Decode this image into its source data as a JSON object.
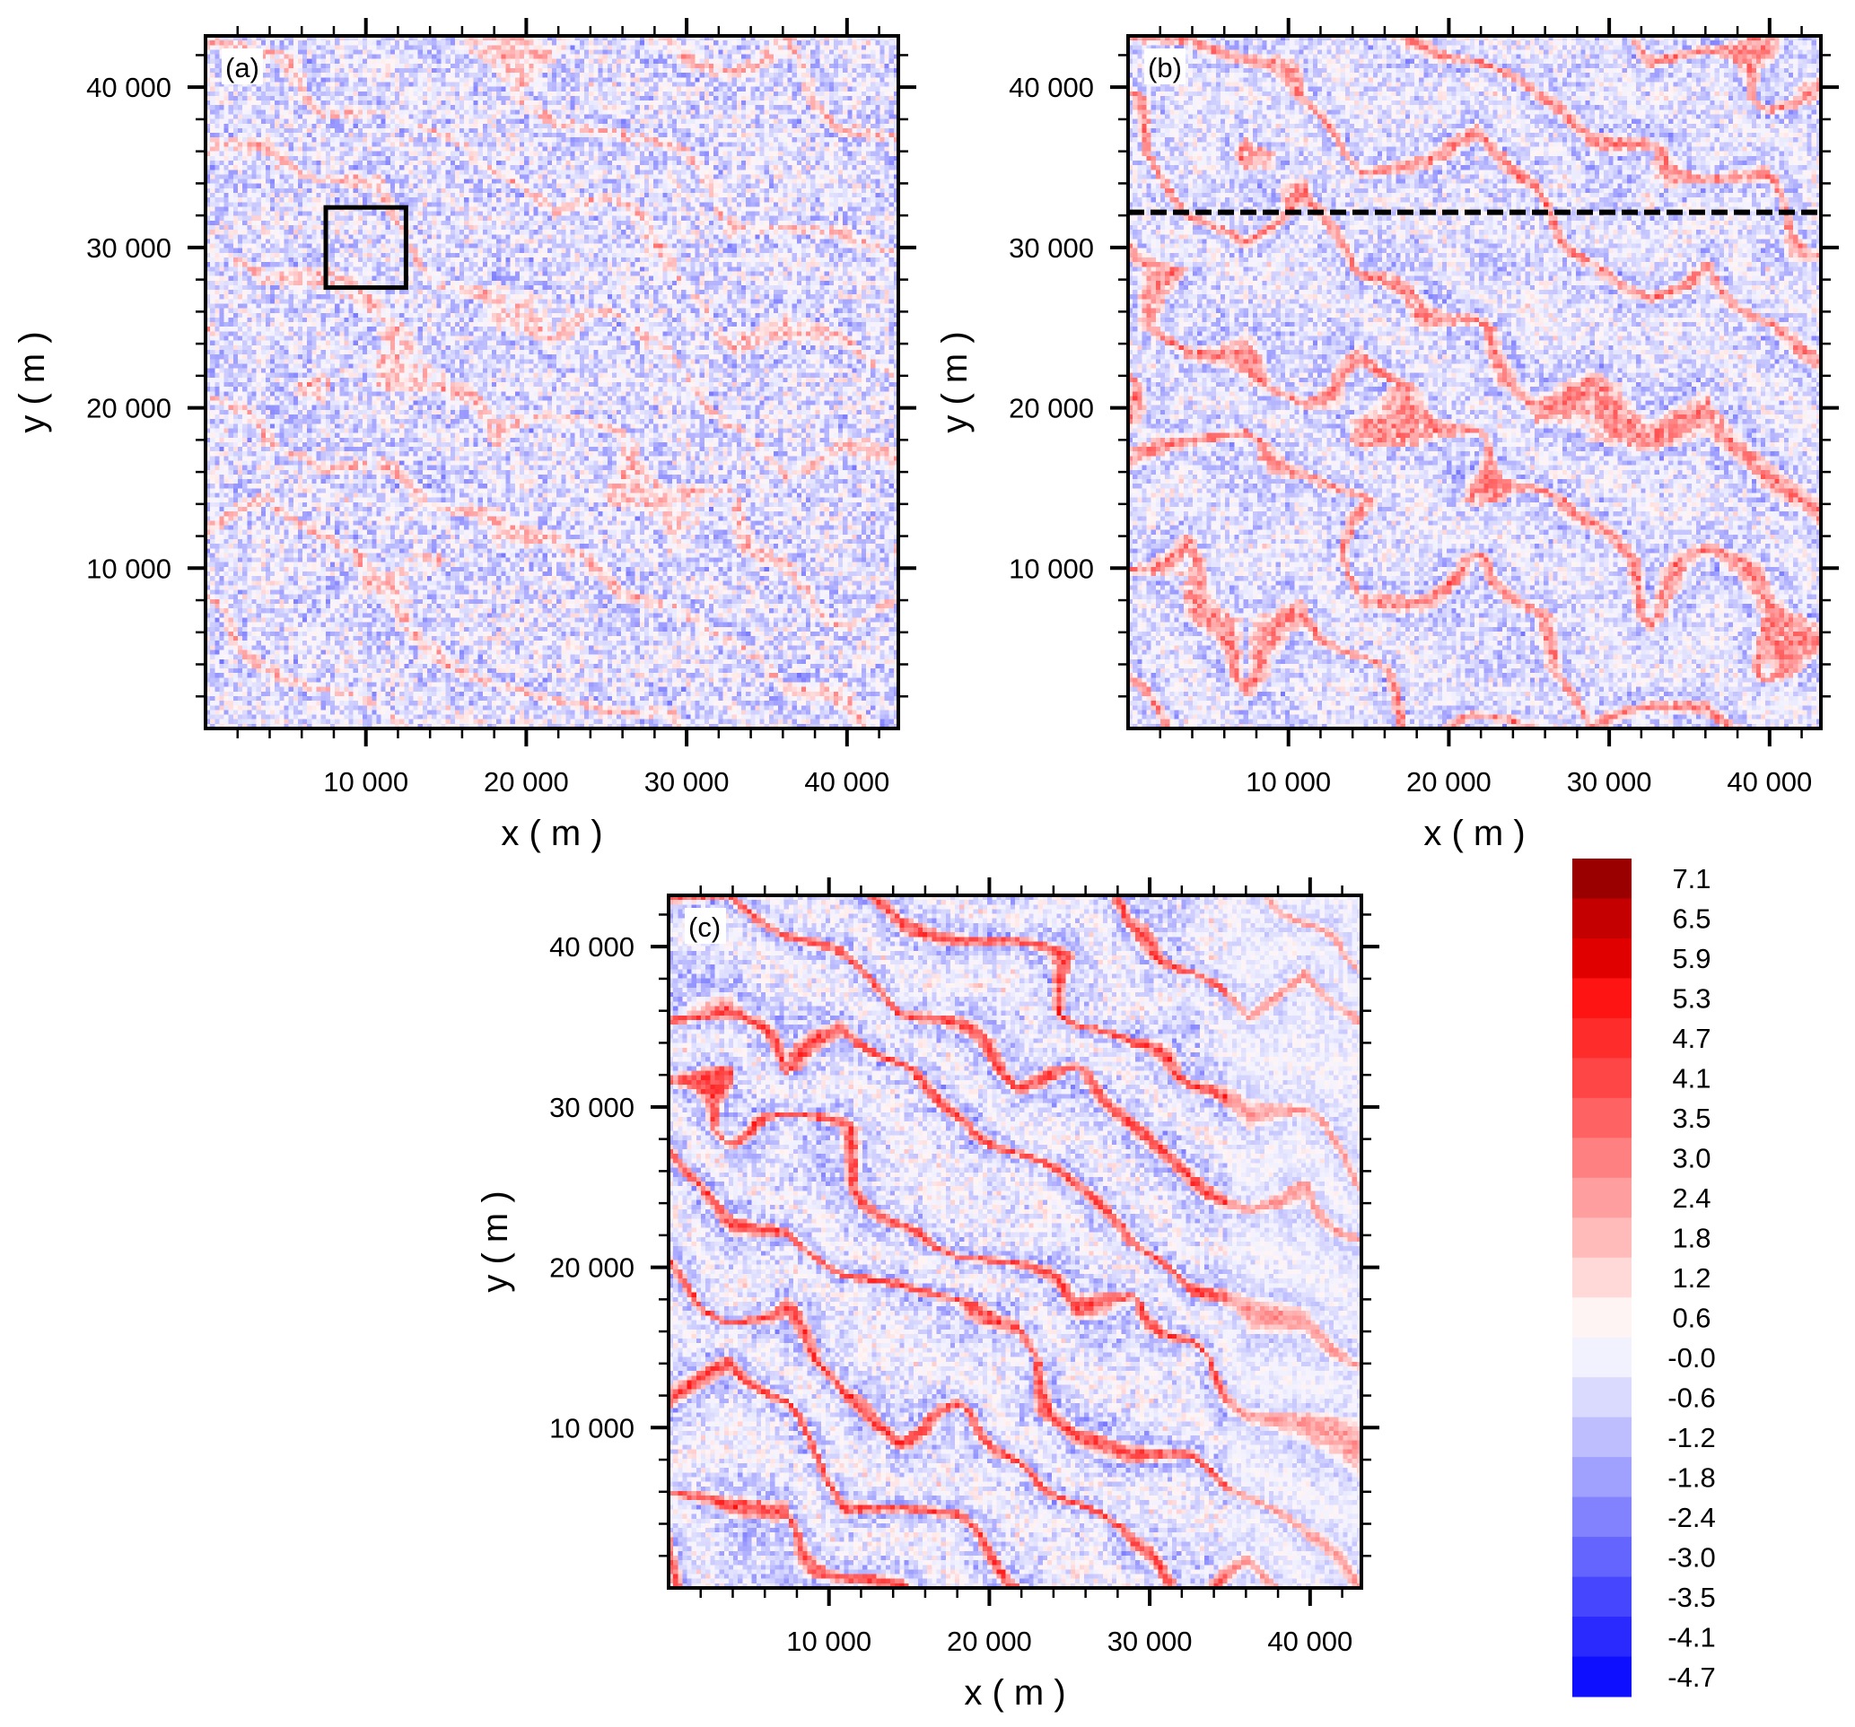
{
  "chart_data": {
    "type": "heatmap",
    "x_range": [
      0,
      43200
    ],
    "y_range": [
      0,
      43200
    ],
    "panels": [
      {
        "id": "a",
        "label": "(a)",
        "xlabel": "x ( m )",
        "ylabel": "y ( m )",
        "annotation": {
          "type": "box",
          "x": [
            7500,
            12500
          ],
          "y": [
            27500,
            32500
          ]
        }
      },
      {
        "id": "b",
        "label": "(b)",
        "xlabel": "x ( m )",
        "ylabel": "y ( m )",
        "annotation": {
          "type": "dashed-hline",
          "y": 32200
        }
      },
      {
        "id": "c",
        "label": "(c)",
        "xlabel": "x ( m )",
        "ylabel": "y ( m )",
        "annotation": null
      }
    ],
    "x_ticks": [
      10000,
      20000,
      30000,
      40000
    ],
    "x_tick_labels": [
      "10 000",
      "20 000",
      "30 000",
      "40 000"
    ],
    "y_ticks": [
      10000,
      20000,
      30000,
      40000
    ],
    "y_tick_labels": [
      "10 000",
      "20 000",
      "30 000",
      "40 000"
    ],
    "minor_tick_step": 2000,
    "colorbar": {
      "labels": [
        "7.1",
        "6.5",
        "5.9",
        "5.3",
        "4.7",
        "4.1",
        "3.5",
        "3.0",
        "2.4",
        "1.8",
        "1.2",
        "0.6",
        "-0.0",
        "-0.6",
        "-1.2",
        "-1.8",
        "-2.4",
        "-3.0",
        "-3.5",
        "-4.1",
        "-4.7"
      ],
      "colors": [
        "#9a0000",
        "#c40000",
        "#e00000",
        "#ff1414",
        "#ff2c2c",
        "#ff4646",
        "#ff6262",
        "#ff8080",
        "#ff9e9e",
        "#ffbaba",
        "#ffd8d8",
        "#fff4f4",
        "#f2f2ff",
        "#dadaff",
        "#bebeff",
        "#a0a0ff",
        "#8282ff",
        "#6464ff",
        "#4646ff",
        "#2a2aff",
        "#0f0fff"
      ],
      "range": [
        -5.0,
        7.4
      ]
    }
  }
}
